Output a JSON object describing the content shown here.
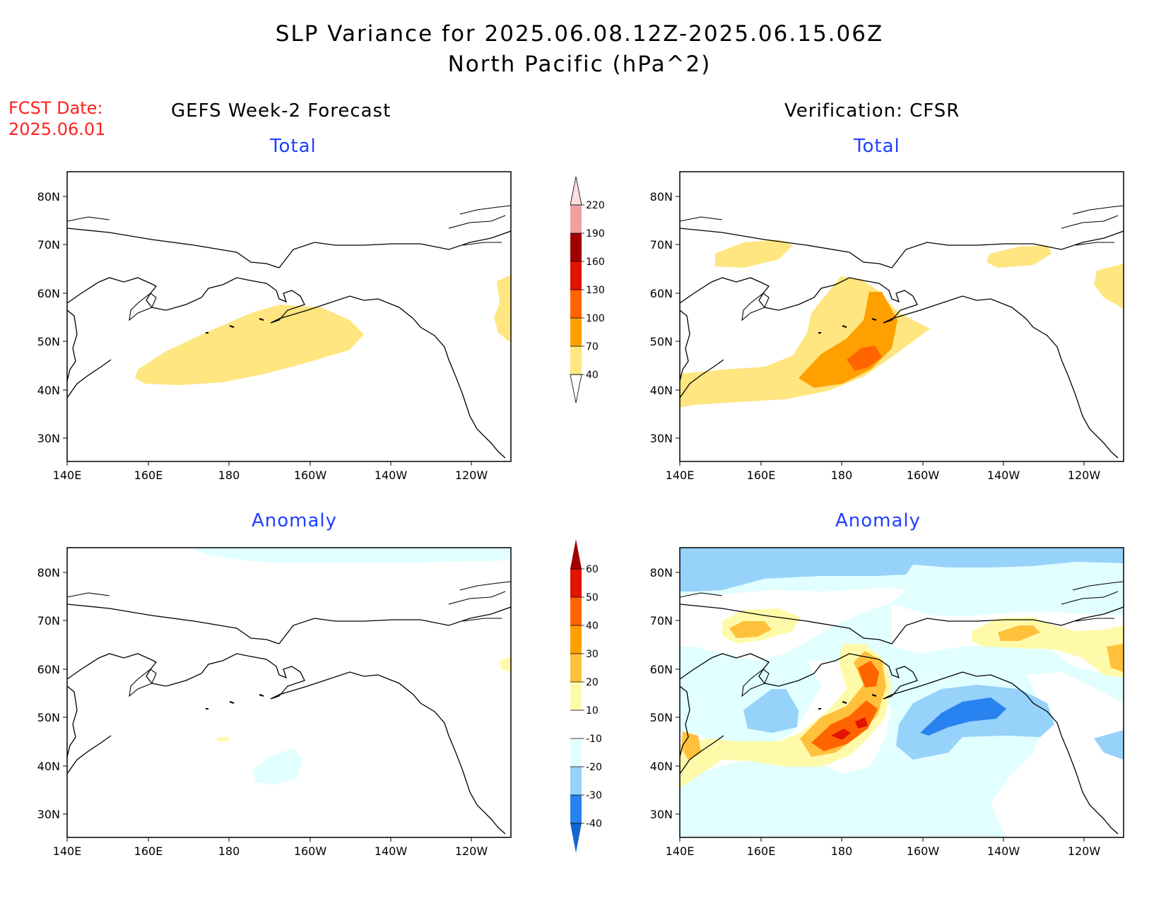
{
  "header": {
    "title_line1": "SLP Variance for 2025.06.08.12Z-2025.06.15.06Z",
    "title_line2": "North Pacific (hPa^2)",
    "fcst_label": "FCST Date:",
    "fcst_date": "2025.06.01"
  },
  "columns": {
    "left": "GEFS Week-2 Forecast",
    "right": "Verification: CFSR"
  },
  "panels": [
    {
      "id": "fcst-total",
      "label": "Total"
    },
    {
      "id": "verif-total",
      "label": "Total"
    },
    {
      "id": "fcst-anom",
      "label": "Anomaly"
    },
    {
      "id": "verif-anom",
      "label": "Anomaly"
    }
  ],
  "axes": {
    "lat_labels": [
      "80N",
      "70N",
      "60N",
      "50N",
      "40N",
      "30N"
    ],
    "lon_labels": [
      "140E",
      "160E",
      "180",
      "160W",
      "140W",
      "120W"
    ]
  },
  "colorbar_total": {
    "levels": [
      "40",
      "70",
      "100",
      "130",
      "160",
      "190",
      "220"
    ],
    "colors": [
      "#ffe680",
      "#ffa000",
      "#ff6400",
      "#e01400",
      "#a00000",
      "#f0a0a0",
      "#fde0e0"
    ]
  },
  "colorbar_anom": {
    "levels": [
      "-40",
      "-30",
      "-20",
      "-10",
      "10",
      "20",
      "30",
      "40",
      "50",
      "60"
    ],
    "colors": [
      "#1464d2",
      "#2882f0",
      "#96d2fa",
      "#e1ffff",
      "#ffffff",
      "#fffaaa",
      "#ffc03c",
      "#ffa000",
      "#ff6400",
      "#e01400",
      "#a00000"
    ]
  },
  "colors": {
    "panel_title": "#1f3fff",
    "fcst_text": "#ff2020"
  }
}
